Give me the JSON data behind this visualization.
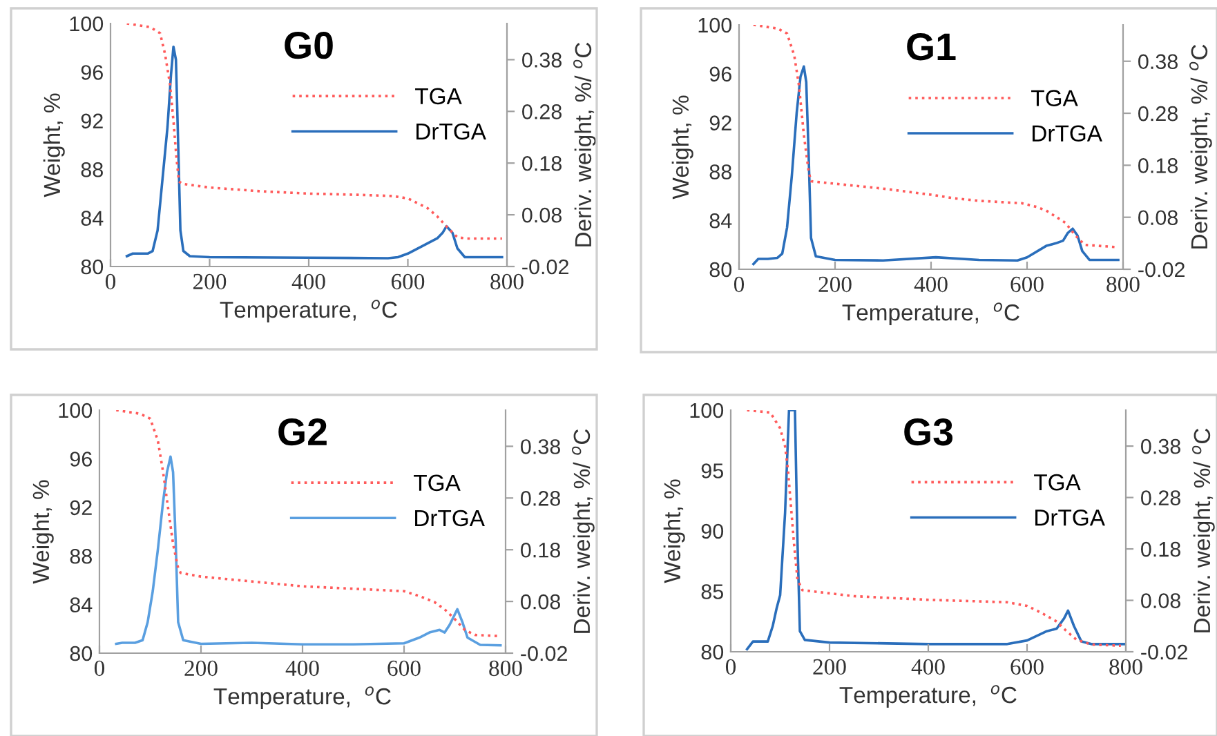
{
  "chart_data": [
    {
      "type": "line",
      "title": "G0",
      "xlabel": "Temperature,  $^{o}$C",
      "ylabel": "Weight, %",
      "y2label": "Deriv. weight, %/ $^{o}$C",
      "xlim": [
        0,
        800
      ],
      "xticks": [
        0,
        200,
        400,
        600,
        800
      ],
      "ylim": [
        80,
        100
      ],
      "yticks": [
        80,
        84,
        88,
        92,
        96,
        100
      ],
      "y2lim": [
        -0.02,
        0.45
      ],
      "y2ticks": [
        -0.02,
        0.08,
        0.18,
        0.28,
        0.38
      ],
      "grid": false,
      "legend": "right",
      "series": [
        {
          "name": "TGA",
          "color": "#ff5a5a",
          "line_style": "dotted",
          "x": [
            33,
            80,
            100,
            110,
            120,
            127,
            133,
            138,
            145,
            200,
            300,
            400,
            500,
            570,
            600,
            640,
            660,
            680,
            700,
            720,
            790
          ],
          "values": [
            100,
            99.7,
            99.2,
            97.5,
            95,
            92,
            89,
            87,
            86.8,
            86.5,
            86.2,
            86.0,
            85.9,
            85.8,
            85.6,
            84.8,
            84.1,
            83.2,
            82.4,
            82.3,
            82.3
          ]
        },
        {
          "name": "DrTGA",
          "color": "#2a6ebb",
          "line_style": "solid",
          "axis": "y2",
          "x": [
            33,
            45,
            60,
            75,
            85,
            95,
            105,
            115,
            122,
            127,
            132,
            137,
            141,
            147,
            160,
            200,
            400,
            560,
            580,
            600,
            640,
            660,
            670,
            678,
            690,
            700,
            715,
            790
          ],
          "values": [
            0.0,
            0.005,
            0.005,
            0.005,
            0.01,
            0.05,
            0.15,
            0.25,
            0.35,
            0.405,
            0.38,
            0.2,
            0.05,
            0.01,
            0.0,
            -0.002,
            -0.003,
            -0.004,
            -0.002,
            0.005,
            0.025,
            0.035,
            0.045,
            0.058,
            0.045,
            0.015,
            -0.002,
            -0.002
          ]
        }
      ]
    },
    {
      "type": "line",
      "title": "G1",
      "xlabel": "Temperature,  $^{o}$C",
      "ylabel": "Weight, %",
      "y2label": "Deriv. weight, %/ $^{o}$C",
      "xlim": [
        0,
        800
      ],
      "xticks": [
        0,
        200,
        400,
        600,
        800
      ],
      "ylim": [
        80,
        100
      ],
      "yticks": [
        80,
        84,
        88,
        92,
        96,
        100
      ],
      "y2lim": [
        -0.02,
        0.45
      ],
      "y2ticks": [
        -0.02,
        0.08,
        0.18,
        0.28,
        0.38
      ],
      "grid": false,
      "legend": "right",
      "series": [
        {
          "name": "TGA",
          "color": "#ff5a5a",
          "line_style": "dotted",
          "x": [
            30,
            80,
            100,
            115,
            125,
            135,
            145,
            150,
            200,
            300,
            400,
            450,
            500,
            590,
            620,
            640,
            680,
            700,
            720,
            790
          ],
          "values": [
            100,
            99.7,
            99.3,
            97.5,
            95,
            91,
            88,
            87.2,
            87.0,
            86.6,
            86.1,
            85.8,
            85.6,
            85.4,
            85.1,
            84.8,
            83.8,
            82.8,
            82.0,
            81.8
          ]
        },
        {
          "name": "DrTGA",
          "color": "#2a6ebb",
          "line_style": "solid",
          "axis": "y2",
          "x": [
            30,
            40,
            60,
            80,
            90,
            100,
            110,
            120,
            128,
            135,
            140,
            145,
            150,
            160,
            200,
            300,
            410,
            500,
            580,
            600,
            640,
            660,
            675,
            685,
            695,
            705,
            715,
            730,
            790
          ],
          "values": [
            -0.01,
            0.0,
            0.0,
            0.002,
            0.01,
            0.06,
            0.16,
            0.28,
            0.35,
            0.37,
            0.34,
            0.2,
            0.04,
            0.005,
            -0.002,
            -0.003,
            0.003,
            -0.002,
            -0.003,
            0.003,
            0.025,
            0.03,
            0.035,
            0.05,
            0.058,
            0.045,
            0.015,
            -0.002,
            -0.002
          ]
        }
      ]
    },
    {
      "type": "line",
      "title": "G2",
      "xlabel": "Temperature,  $^{o}$C",
      "ylabel": "Weight, %",
      "y2label": "Deriv. weight, %/ $^{o}$C",
      "xlim": [
        0,
        800
      ],
      "xticks": [
        0,
        200,
        400,
        600,
        800
      ],
      "ylim": [
        80,
        100
      ],
      "yticks": [
        80,
        84,
        88,
        92,
        96,
        100
      ],
      "y2lim": [
        -0.02,
        0.45
      ],
      "y2ticks": [
        -0.02,
        0.08,
        0.18,
        0.28,
        0.38
      ],
      "grid": false,
      "legend": "right",
      "series": [
        {
          "name": "TGA",
          "color": "#ff5a5a",
          "line_style": "dotted",
          "x": [
            33,
            80,
            100,
            115,
            125,
            135,
            145,
            155,
            160,
            200,
            300,
            400,
            500,
            600,
            630,
            660,
            680,
            700,
            720,
            740,
            790
          ],
          "values": [
            100,
            99.7,
            99.3,
            97.5,
            95,
            92,
            89,
            87,
            86.6,
            86.3,
            85.9,
            85.5,
            85.3,
            85.1,
            84.7,
            84.2,
            83.6,
            82.8,
            81.9,
            81.5,
            81.4
          ]
        },
        {
          "name": "DrTGA",
          "color": "#5a9fe0",
          "line_style": "solid",
          "axis": "y2",
          "x": [
            33,
            45,
            70,
            85,
            95,
            105,
            115,
            125,
            133,
            140,
            145,
            150,
            155,
            165,
            200,
            300,
            400,
            500,
            600,
            630,
            650,
            670,
            680,
            690,
            705,
            715,
            725,
            750,
            790
          ],
          "values": [
            -0.002,
            0.0,
            0.0,
            0.005,
            0.04,
            0.1,
            0.18,
            0.27,
            0.33,
            0.36,
            0.33,
            0.2,
            0.04,
            0.005,
            -0.002,
            0.0,
            -0.003,
            -0.003,
            -0.001,
            0.01,
            0.02,
            0.025,
            0.02,
            0.035,
            0.065,
            0.04,
            0.01,
            -0.004,
            -0.005
          ]
        }
      ]
    },
    {
      "type": "line",
      "title": "G3",
      "xlabel": "Temperature,  $^{o}$C",
      "ylabel": "Weight, %",
      "y2label": "Deriv. weight, %/ $^{o}$C",
      "xlim": [
        0,
        800
      ],
      "xticks": [
        0,
        200,
        400,
        600,
        800
      ],
      "ylim": [
        80,
        100
      ],
      "yticks": [
        80,
        85,
        90,
        95,
        100
      ],
      "y2lim": [
        -0.02,
        0.45
      ],
      "y2ticks": [
        -0.02,
        0.08,
        0.18,
        0.28,
        0.38
      ],
      "grid": false,
      "legend": "right",
      "series": [
        {
          "name": "TGA",
          "color": "#ff5a5a",
          "line_style": "dotted",
          "x": [
            33,
            80,
            100,
            110,
            116,
            122,
            128,
            135,
            145,
            250,
            400,
            560,
            600,
            630,
            660,
            680,
            700,
            730,
            790
          ],
          "values": [
            100,
            99.8,
            98.5,
            97,
            95,
            92,
            89,
            86,
            85.1,
            84.6,
            84.3,
            84.1,
            83.8,
            83.2,
            82.5,
            81.7,
            81.0,
            80.6,
            80.5
          ]
        },
        {
          "name": "DrTGA",
          "color": "#2a6ebb",
          "line_style": "solid",
          "axis": "y2",
          "x": [
            33,
            45,
            75,
            85,
            93,
            100,
            110,
            118,
            130,
            135,
            140,
            150,
            200,
            400,
            560,
            600,
            640,
            660,
            675,
            683,
            695,
            710,
            730,
            800
          ],
          "values": [
            -0.015,
            0.0,
            0.0,
            0.03,
            0.065,
            0.09,
            0.25,
            0.45,
            0.45,
            0.2,
            0.02,
            0.003,
            -0.002,
            -0.005,
            -0.005,
            0.002,
            0.02,
            0.025,
            0.045,
            0.06,
            0.03,
            0.0,
            -0.005,
            -0.005
          ]
        }
      ]
    }
  ]
}
